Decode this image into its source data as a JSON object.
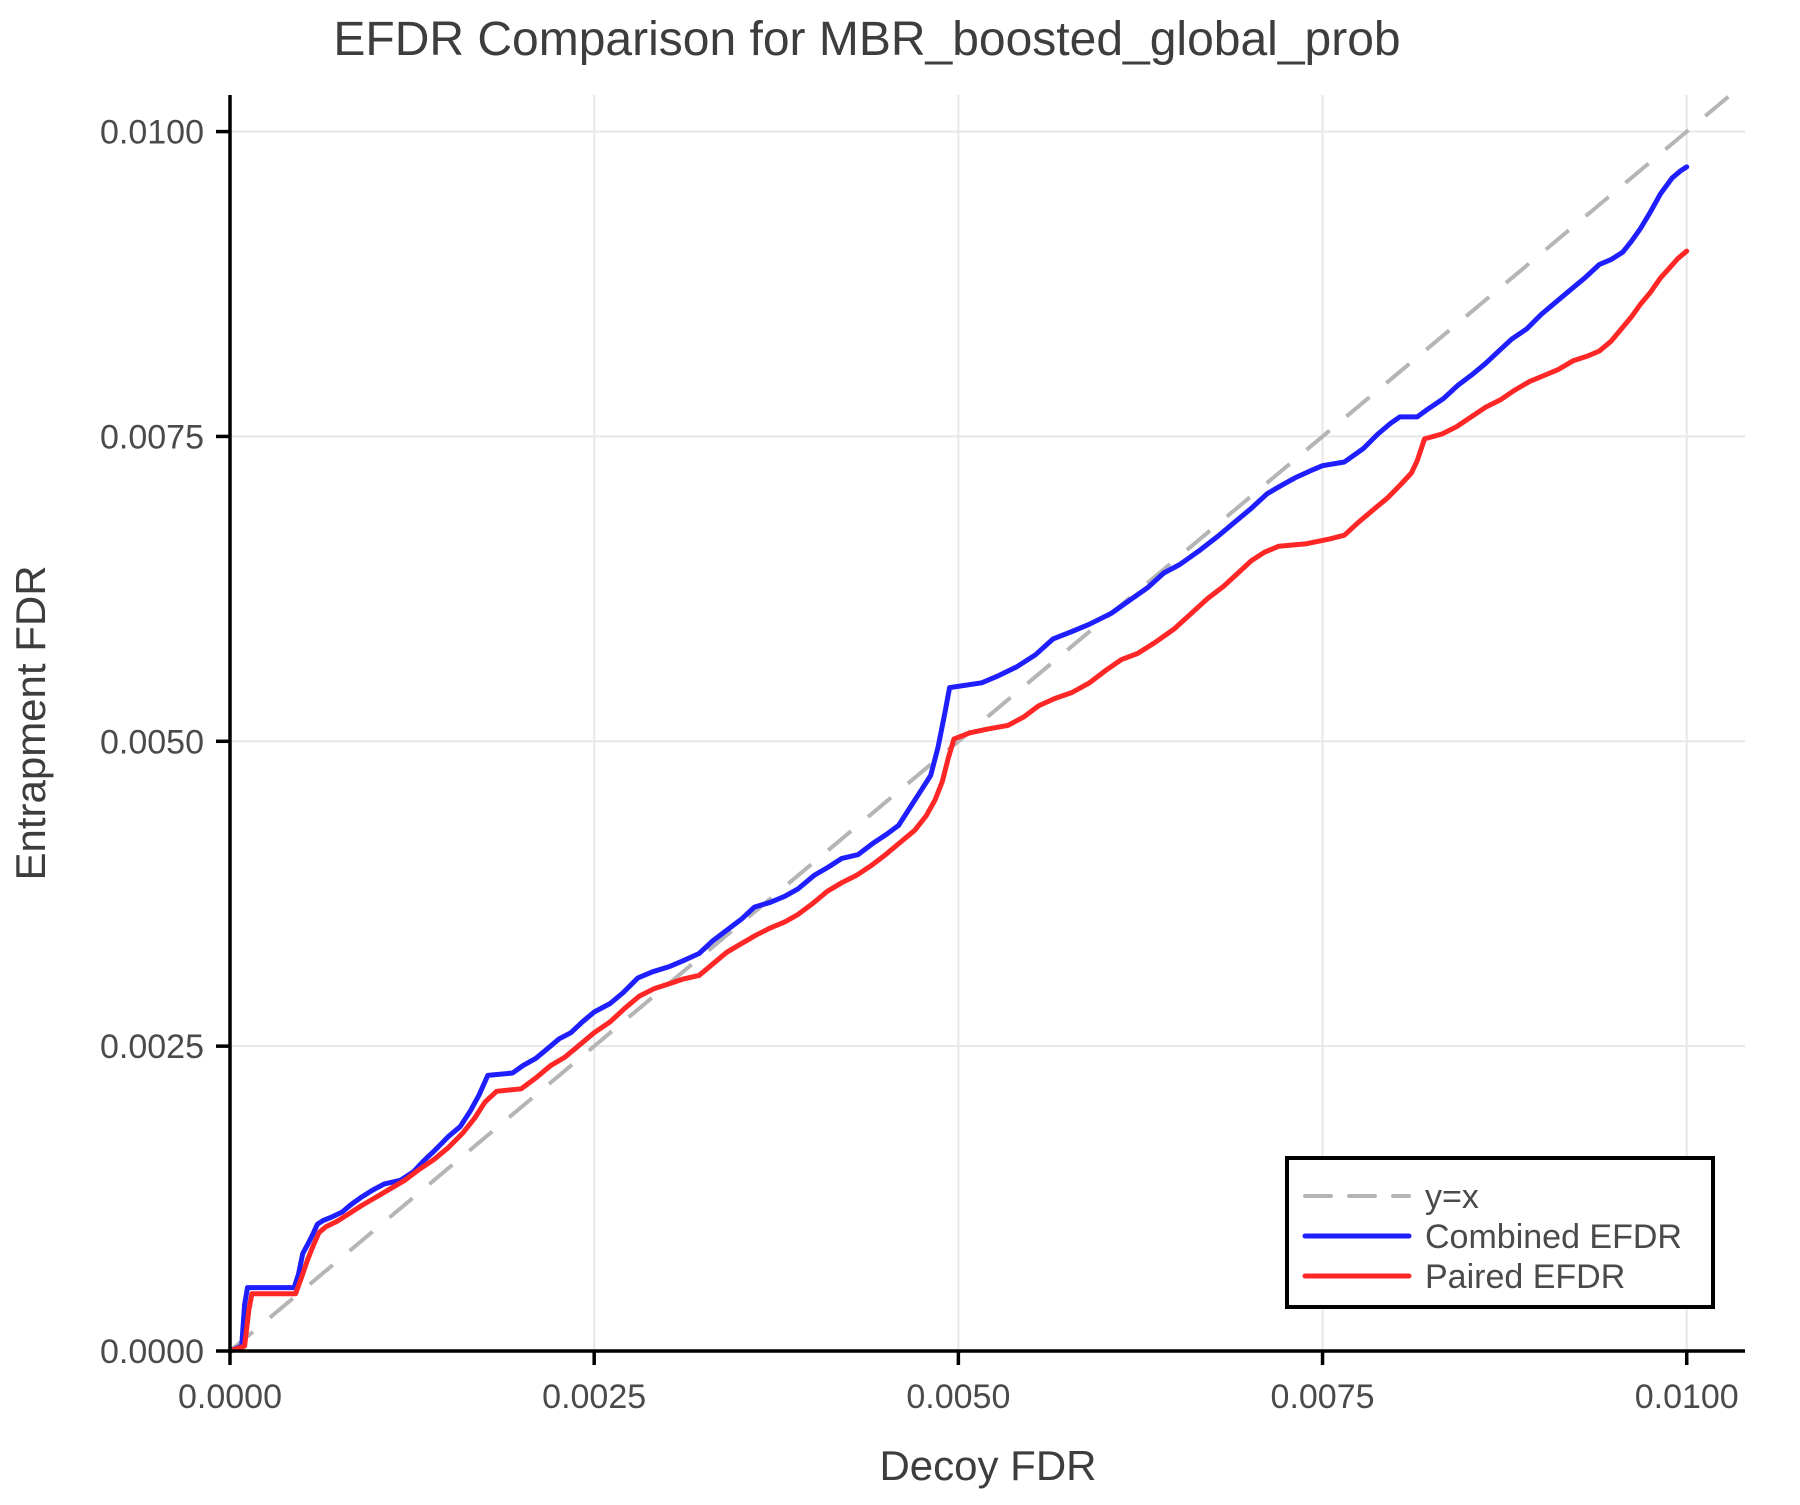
{
  "title": "EFDR Comparison for MBR_boosted_global_prob",
  "colors": {
    "combined_line": "#1e1eff",
    "paired_line": "#ff2626",
    "identity_line": "#b5b5b5",
    "grid_line": "#e7e7e7",
    "spine": "#000000",
    "text": "#4a4a4a",
    "background": "#ffffff",
    "legend_border": "#000000"
  },
  "legend": {
    "entries": [
      {
        "label": "y=x",
        "color": "#b5b5b5",
        "dashed": true
      },
      {
        "label": "Combined EFDR",
        "color": "#1e1eff",
        "dashed": false
      },
      {
        "label": "Paired EFDR",
        "color": "#ff2626",
        "dashed": false
      }
    ]
  },
  "chart_data": {
    "type": "line",
    "title": "EFDR Comparison for MBR_boosted_global_prob",
    "xlabel": "Decoy FDR",
    "ylabel": "Entrapment FDR",
    "xlim": [
      0,
      0.0104
    ],
    "ylim": [
      0,
      0.0103
    ],
    "grid": true,
    "legend_position": "lower right",
    "x_ticks": [
      0.0,
      0.0025,
      0.005,
      0.0075,
      0.01
    ],
    "x_tick_labels": [
      "0.0000",
      "0.0025",
      "0.0050",
      "0.0075",
      "0.0100"
    ],
    "y_ticks": [
      0.0,
      0.0025,
      0.005,
      0.0075,
      0.01
    ],
    "y_tick_labels": [
      "0.0000",
      "0.0025",
      "0.0050",
      "0.0075",
      "0.0100"
    ],
    "reference_line": {
      "name": "y=x",
      "from": [
        0,
        0
      ],
      "to": [
        0.0103,
        0.0103
      ],
      "dashed": true
    },
    "series": [
      {
        "name": "Combined EFDR",
        "color": "#1e1eff",
        "points": [
          [
            0,
            0
          ],
          [
            8e-05,
            4e-05
          ],
          [
            0.0001,
            0.00038
          ],
          [
            0.00012,
            0.00052
          ],
          [
            0.00044,
            0.00052
          ],
          [
            0.00047,
            0.00063
          ],
          [
            0.0005,
            0.0008
          ],
          [
            0.00054,
            0.00089
          ],
          [
            0.00057,
            0.00096
          ],
          [
            0.0006,
            0.00104
          ],
          [
            0.00064,
            0.00107
          ],
          [
            0.0007,
            0.0011
          ],
          [
            0.00077,
            0.00114
          ],
          [
            0.00083,
            0.0012
          ],
          [
            0.0009,
            0.00126
          ],
          [
            0.00098,
            0.00132
          ],
          [
            0.00106,
            0.00137
          ],
          [
            0.00117,
            0.0014
          ],
          [
            0.00126,
            0.00147
          ],
          [
            0.00133,
            0.00156
          ],
          [
            0.00141,
            0.00165
          ],
          [
            0.0015,
            0.00176
          ],
          [
            0.00158,
            0.00184
          ],
          [
            0.00165,
            0.00197
          ],
          [
            0.00171,
            0.0021
          ],
          [
            0.00177,
            0.00226
          ],
          [
            0.00194,
            0.00228
          ],
          [
            0.00201,
            0.00234
          ],
          [
            0.0021,
            0.0024
          ],
          [
            0.00218,
            0.00248
          ],
          [
            0.00226,
            0.00256
          ],
          [
            0.00234,
            0.00261
          ],
          [
            0.00242,
            0.0027
          ],
          [
            0.0025,
            0.00278
          ],
          [
            0.00261,
            0.00285
          ],
          [
            0.0027,
            0.00294
          ],
          [
            0.0028,
            0.00306
          ],
          [
            0.0029,
            0.00311
          ],
          [
            0.00301,
            0.00315
          ],
          [
            0.00311,
            0.0032
          ],
          [
            0.00322,
            0.00326
          ],
          [
            0.00331,
            0.00336
          ],
          [
            0.00341,
            0.00345
          ],
          [
            0.00351,
            0.00354
          ],
          [
            0.0036,
            0.00364
          ],
          [
            0.00371,
            0.00368
          ],
          [
            0.00381,
            0.00373
          ],
          [
            0.0039,
            0.00379
          ],
          [
            0.00401,
            0.0039
          ],
          [
            0.00411,
            0.00397
          ],
          [
            0.0042,
            0.00404
          ],
          [
            0.00431,
            0.00407
          ],
          [
            0.00441,
            0.00416
          ],
          [
            0.00451,
            0.00424
          ],
          [
            0.00459,
            0.00431
          ],
          [
            0.00467,
            0.00446
          ],
          [
            0.00474,
            0.00459
          ],
          [
            0.00481,
            0.00472
          ],
          [
            0.00486,
            0.00495
          ],
          [
            0.00491,
            0.00525
          ],
          [
            0.00494,
            0.00544
          ],
          [
            0.00516,
            0.00548
          ],
          [
            0.00526,
            0.00553
          ],
          [
            0.0054,
            0.00561
          ],
          [
            0.00553,
            0.00571
          ],
          [
            0.00565,
            0.00584
          ],
          [
            0.00578,
            0.0059
          ],
          [
            0.0059,
            0.00596
          ],
          [
            0.00605,
            0.00605
          ],
          [
            0.00618,
            0.00616
          ],
          [
            0.0063,
            0.00626
          ],
          [
            0.00641,
            0.00638
          ],
          [
            0.00652,
            0.00645
          ],
          [
            0.00665,
            0.00656
          ],
          [
            0.00678,
            0.00668
          ],
          [
            0.0069,
            0.0068
          ],
          [
            0.00701,
            0.00691
          ],
          [
            0.00712,
            0.00703
          ],
          [
            0.00722,
            0.0071
          ],
          [
            0.00731,
            0.00716
          ],
          [
            0.00742,
            0.00722
          ],
          [
            0.0075,
            0.00726
          ],
          [
            0.00765,
            0.00729
          ],
          [
            0.00778,
            0.0074
          ],
          [
            0.00788,
            0.00752
          ],
          [
            0.00797,
            0.00761
          ],
          [
            0.00803,
            0.00766
          ],
          [
            0.00815,
            0.00766
          ],
          [
            0.00823,
            0.00773
          ],
          [
            0.00833,
            0.00781
          ],
          [
            0.00843,
            0.00792
          ],
          [
            0.00853,
            0.00801
          ],
          [
            0.00862,
            0.0081
          ],
          [
            0.0087,
            0.00819
          ],
          [
            0.0088,
            0.0083
          ],
          [
            0.0089,
            0.00838
          ],
          [
            0.009,
            0.0085
          ],
          [
            0.0091,
            0.0086
          ],
          [
            0.0092,
            0.0087
          ],
          [
            0.0093,
            0.0088
          ],
          [
            0.0094,
            0.00891
          ],
          [
            0.00948,
            0.00895
          ],
          [
            0.00956,
            0.00901
          ],
          [
            0.00962,
            0.0091
          ],
          [
            0.00968,
            0.0092
          ],
          [
            0.00975,
            0.00934
          ],
          [
            0.00982,
            0.00949
          ],
          [
            0.0099,
            0.00962
          ],
          [
            0.00996,
            0.00968
          ],
          [
            0.01,
            0.00971
          ]
        ]
      },
      {
        "name": "Paired EFDR",
        "color": "#ff2626",
        "points": [
          [
            0,
            0
          ],
          [
            0.0001,
            4e-05
          ],
          [
            0.00013,
            0.00034
          ],
          [
            0.00015,
            0.00047
          ],
          [
            0.00045,
            0.00047
          ],
          [
            0.00049,
            0.0006
          ],
          [
            0.00053,
            0.00074
          ],
          [
            0.00057,
            0.00086
          ],
          [
            0.00061,
            0.00097
          ],
          [
            0.00066,
            0.00102
          ],
          [
            0.00073,
            0.00106
          ],
          [
            0.00081,
            0.00112
          ],
          [
            0.0009,
            0.00119
          ],
          [
            0.001,
            0.00126
          ],
          [
            0.0011,
            0.00133
          ],
          [
            0.0012,
            0.0014
          ],
          [
            0.0013,
            0.00149
          ],
          [
            0.0014,
            0.00157
          ],
          [
            0.0015,
            0.00167
          ],
          [
            0.0016,
            0.00179
          ],
          [
            0.00168,
            0.00191
          ],
          [
            0.00175,
            0.00204
          ],
          [
            0.00183,
            0.00213
          ],
          [
            0.002,
            0.00215
          ],
          [
            0.0021,
            0.00224
          ],
          [
            0.0022,
            0.00234
          ],
          [
            0.0023,
            0.00241
          ],
          [
            0.0024,
            0.00251
          ],
          [
            0.0025,
            0.00261
          ],
          [
            0.00261,
            0.0027
          ],
          [
            0.00271,
            0.00281
          ],
          [
            0.00281,
            0.00291
          ],
          [
            0.00291,
            0.00297
          ],
          [
            0.00301,
            0.00301
          ],
          [
            0.00311,
            0.00305
          ],
          [
            0.00322,
            0.00308
          ],
          [
            0.00331,
            0.00317
          ],
          [
            0.00341,
            0.00327
          ],
          [
            0.00351,
            0.00334
          ],
          [
            0.00361,
            0.00341
          ],
          [
            0.00371,
            0.00347
          ],
          [
            0.00381,
            0.00352
          ],
          [
            0.0039,
            0.00358
          ],
          [
            0.004,
            0.00367
          ],
          [
            0.0041,
            0.00377
          ],
          [
            0.0042,
            0.00384
          ],
          [
            0.0043,
            0.0039
          ],
          [
            0.0044,
            0.00398
          ],
          [
            0.0045,
            0.00407
          ],
          [
            0.0046,
            0.00417
          ],
          [
            0.0047,
            0.00427
          ],
          [
            0.00478,
            0.00439
          ],
          [
            0.00484,
            0.00452
          ],
          [
            0.00489,
            0.00467
          ],
          [
            0.00493,
            0.00486
          ],
          [
            0.00497,
            0.00502
          ],
          [
            0.00508,
            0.00507
          ],
          [
            0.0052,
            0.0051
          ],
          [
            0.00534,
            0.00513
          ],
          [
            0.00545,
            0.0052
          ],
          [
            0.00555,
            0.00529
          ],
          [
            0.00566,
            0.00535
          ],
          [
            0.00578,
            0.0054
          ],
          [
            0.0059,
            0.00548
          ],
          [
            0.00601,
            0.00558
          ],
          [
            0.00612,
            0.00567
          ],
          [
            0.00623,
            0.00572
          ],
          [
            0.00635,
            0.00581
          ],
          [
            0.00648,
            0.00592
          ],
          [
            0.0066,
            0.00605
          ],
          [
            0.00671,
            0.00617
          ],
          [
            0.00682,
            0.00627
          ],
          [
            0.00692,
            0.00638
          ],
          [
            0.00701,
            0.00648
          ],
          [
            0.0071,
            0.00655
          ],
          [
            0.0072,
            0.0066
          ],
          [
            0.00739,
            0.00662
          ],
          [
            0.00755,
            0.00666
          ],
          [
            0.00765,
            0.00669
          ],
          [
            0.00775,
            0.0068
          ],
          [
            0.00785,
            0.0069
          ],
          [
            0.00795,
            0.007
          ],
          [
            0.00804,
            0.00711
          ],
          [
            0.00811,
            0.0072
          ],
          [
            0.00815,
            0.0073
          ],
          [
            0.0082,
            0.00748
          ],
          [
            0.00832,
            0.00752
          ],
          [
            0.00842,
            0.00758
          ],
          [
            0.00852,
            0.00766
          ],
          [
            0.00862,
            0.00774
          ],
          [
            0.00872,
            0.0078
          ],
          [
            0.00882,
            0.00788
          ],
          [
            0.00892,
            0.00795
          ],
          [
            0.00902,
            0.008
          ],
          [
            0.00912,
            0.00805
          ],
          [
            0.00922,
            0.00812
          ],
          [
            0.00932,
            0.00816
          ],
          [
            0.0094,
            0.0082
          ],
          [
            0.00948,
            0.00828
          ],
          [
            0.00955,
            0.00838
          ],
          [
            0.00962,
            0.00848
          ],
          [
            0.00968,
            0.00858
          ],
          [
            0.00975,
            0.00868
          ],
          [
            0.00982,
            0.0088
          ],
          [
            0.00988,
            0.00888
          ],
          [
            0.00994,
            0.00896
          ],
          [
            0.01,
            0.00902
          ]
        ]
      }
    ]
  }
}
